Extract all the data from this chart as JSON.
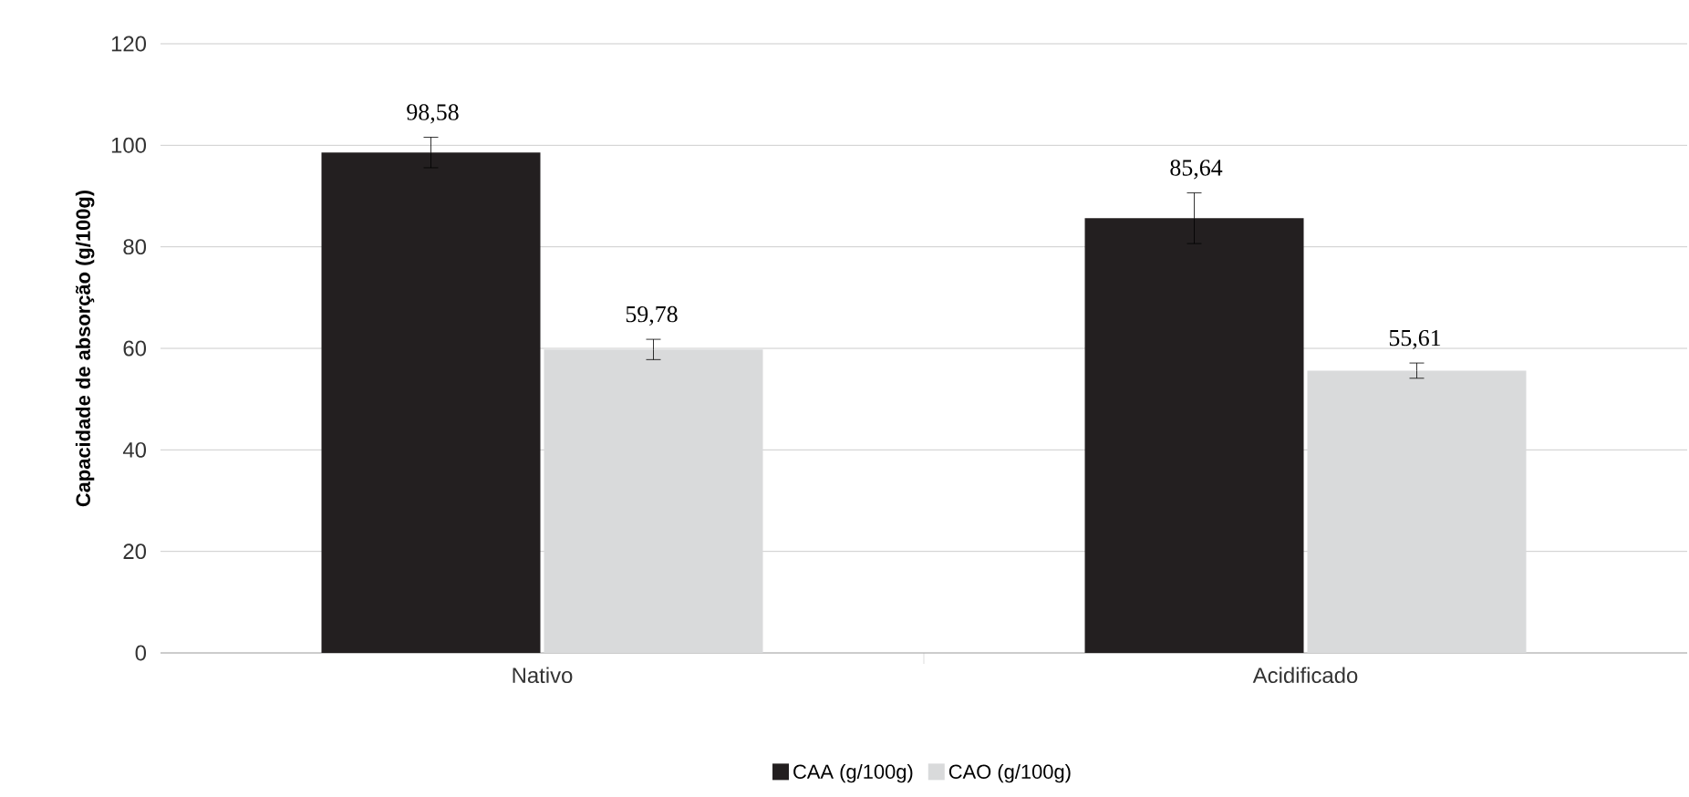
{
  "chart_data": {
    "type": "bar",
    "ylabel": "Capacidade de absorção (g/100g)",
    "categories": [
      "Nativo",
      "Acidificado"
    ],
    "series": [
      {
        "name": "CAA (g/100g)",
        "color": "#231f20",
        "values": [
          98.58,
          85.64
        ],
        "errors": [
          3,
          5
        ],
        "value_labels": [
          "98,58",
          "85,64"
        ]
      },
      {
        "name": "CAO (g/100g)",
        "color": "#d9dadb",
        "values": [
          59.78,
          55.61
        ],
        "errors": [
          2,
          1.5
        ],
        "value_labels": [
          "59,78",
          "55,61"
        ]
      }
    ],
    "ylim": [
      0,
      120
    ],
    "yticks": [
      0,
      20,
      40,
      60,
      80,
      100,
      120
    ],
    "grid": "y",
    "legend": "bottom"
  }
}
